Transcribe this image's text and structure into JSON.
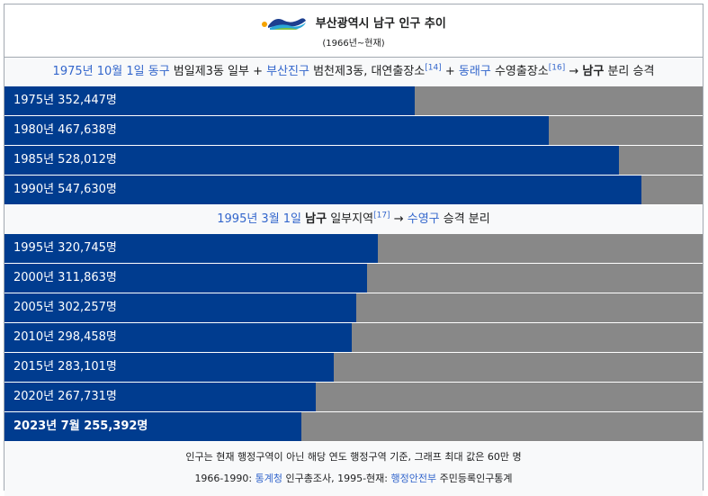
{
  "chart_data": {
    "type": "bar",
    "orientation": "horizontal",
    "title": "부산광역시 남구 인구 추이",
    "subtitle": "(1966년~현재)",
    "xlim": [
      0,
      600000
    ],
    "unit": "명",
    "groups": [
      {
        "header": [
          {
            "text": "1975년 10월 1일",
            "style": "link"
          },
          {
            "text": " ",
            "style": "plain"
          },
          {
            "text": "동구",
            "style": "link"
          },
          {
            "text": " 범일제3동 일부 + ",
            "style": "plain"
          },
          {
            "text": "부산진구",
            "style": "link"
          },
          {
            "text": " 범천제3동, 대연출장소",
            "style": "plain"
          },
          {
            "text": "[14]",
            "style": "sup"
          },
          {
            "text": " + ",
            "style": "plain"
          },
          {
            "text": "동래구",
            "style": "link"
          },
          {
            "text": " 수영출장소",
            "style": "plain"
          },
          {
            "text": "[16]",
            "style": "sup"
          },
          {
            "text": " → ",
            "style": "plain"
          },
          {
            "text": "남구",
            "style": "bold"
          },
          {
            "text": " 분리 승격",
            "style": "plain"
          }
        ],
        "bars": [
          {
            "label": "1975년 352,447명",
            "value": 352447
          },
          {
            "label": "1980년 467,638명",
            "value": 467638
          },
          {
            "label": "1985년 528,012명",
            "value": 528012
          },
          {
            "label": "1990년 547,630명",
            "value": 547630
          }
        ]
      },
      {
        "header": [
          {
            "text": "1995년 3월 1일",
            "style": "link"
          },
          {
            "text": " ",
            "style": "plain"
          },
          {
            "text": "남구",
            "style": "bold"
          },
          {
            "text": " 일부지역",
            "style": "plain"
          },
          {
            "text": "[17]",
            "style": "sup"
          },
          {
            "text": " → ",
            "style": "plain"
          },
          {
            "text": "수영구",
            "style": "link"
          },
          {
            "text": " 승격 분리",
            "style": "plain"
          }
        ],
        "bars": [
          {
            "label": "1995년 320,745명",
            "value": 320745
          },
          {
            "label": "2000년 311,863명",
            "value": 311863
          },
          {
            "label": "2005년 302,257명",
            "value": 302257
          },
          {
            "label": "2010년 298,458명",
            "value": 298458
          },
          {
            "label": "2015년 283,101명",
            "value": 283101
          },
          {
            "label": "2020년 267,731명",
            "value": 267731
          },
          {
            "label": "2023년 7월 255,392명",
            "value": 255392,
            "current": true
          }
        ]
      }
    ],
    "footer": [
      [
        {
          "text": "인구는 현재 행정구역이 아닌 해당 연도 행정구역 기준, 그래프 최대 값은 60만 명",
          "style": "plain"
        }
      ],
      [
        {
          "text": "1966-1990: ",
          "style": "plain"
        },
        {
          "text": "통계청",
          "style": "link"
        },
        {
          "text": " 인구총조사, 1995-현재: ",
          "style": "plain"
        },
        {
          "text": "행정안전부",
          "style": "link"
        },
        {
          "text": " 주민등록인구통계",
          "style": "plain"
        }
      ]
    ],
    "colors": {
      "bar": "#003c8f",
      "track": "#888888",
      "link": "#3366cc"
    },
    "logo_icon": "busan-wave-logo-icon"
  }
}
